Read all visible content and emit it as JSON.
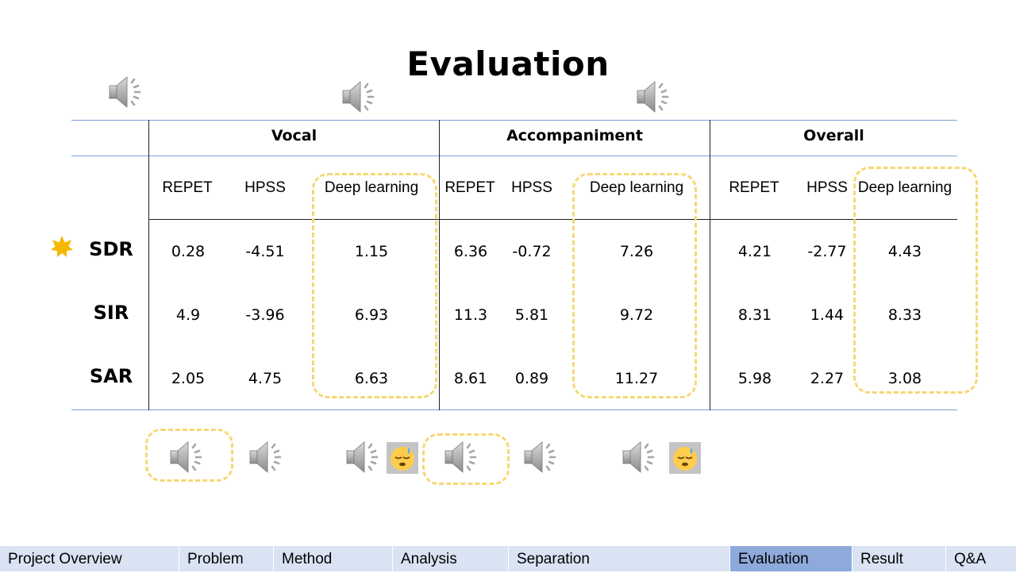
{
  "title": "Evaluation",
  "groups": [
    "Vocal",
    "Accompaniment",
    "Overall"
  ],
  "methods": [
    "REPET",
    "HPSS",
    "Deep learning"
  ],
  "rows": [
    {
      "label": "SDR",
      "values": [
        "0.28",
        "-4.51",
        "1.15",
        "6.36",
        "-0.72",
        "7.26",
        "4.21",
        "-2.77",
        "4.43"
      ]
    },
    {
      "label": "SIR",
      "values": [
        "4.9",
        "-3.96",
        "6.93",
        "11.3",
        "5.81",
        "9.72",
        "8.31",
        "1.44",
        "8.33"
      ]
    },
    {
      "label": "SAR",
      "values": [
        "2.05",
        "4.75",
        "6.63",
        "8.61",
        "0.89",
        "11.27",
        "5.98",
        "2.27",
        "3.08"
      ]
    }
  ],
  "icons": {
    "speaker": "speaker-icon",
    "star": "star-icon",
    "sleepy": "sleepy-face-icon",
    "star_color": "#f5b800",
    "highlight_color": "#f7d774"
  },
  "nav": {
    "items": [
      "Project Overview",
      "Problem",
      "Method",
      "Analysis",
      "Separation",
      "Evaluation",
      "Result",
      "Q&A"
    ],
    "active": "Evaluation",
    "bg_color": "#dae3f3",
    "active_color": "#8ea9db"
  }
}
